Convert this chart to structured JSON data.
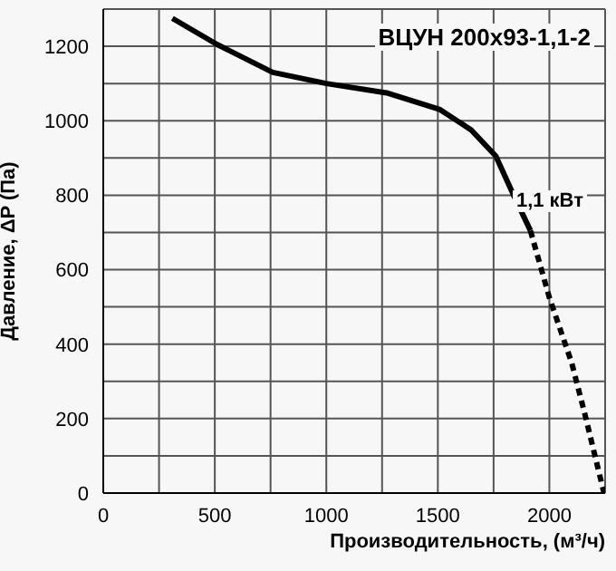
{
  "chart_data": {
    "type": "line",
    "title": "ВЦУН 200x93-1,1-2",
    "xlabel": "Производительность, (м³/ч)",
    "ylabel": "Давление, ΔP (Па)",
    "xlim": [
      0,
      2250
    ],
    "ylim": [
      0,
      1300
    ],
    "xticks": [
      0,
      {
        "value": 250,
        "label": null
      },
      500,
      {
        "value": 750,
        "label": null
      },
      1000,
      {
        "value": 1250,
        "label": null
      },
      1500,
      {
        "value": 1750,
        "label": null
      },
      2000,
      {
        "value": 2250,
        "label": null
      }
    ],
    "yticks": [
      0,
      {
        "value": 100,
        "label": null
      },
      200,
      {
        "value": 300,
        "label": null
      },
      400,
      {
        "value": 500,
        "label": null
      },
      600,
      {
        "value": 700,
        "label": null
      },
      800,
      {
        "value": 900,
        "label": null
      },
      1000,
      {
        "value": 1100,
        "label": null
      },
      1200,
      {
        "value": 1300,
        "label": null
      }
    ],
    "grid": true,
    "marker": "none",
    "series": [
      {
        "color": "#000000",
        "line_style": "solid",
        "x": [
          310,
          510,
          760,
          1000,
          1270,
          1510,
          1650,
          1760,
          1840,
          1915
        ],
        "values": [
          1275,
          1205,
          1130,
          1100,
          1075,
          1030,
          975,
          905,
          800,
          705
        ]
      },
      {
        "color": "#000000",
        "line_style": "dashed",
        "x": [
          1915,
          2000,
          2100,
          2160,
          2245
        ],
        "values": [
          705,
          525,
          350,
          210,
          0
        ]
      }
    ],
    "annotations": [
      "1,1 кВт"
    ]
  }
}
